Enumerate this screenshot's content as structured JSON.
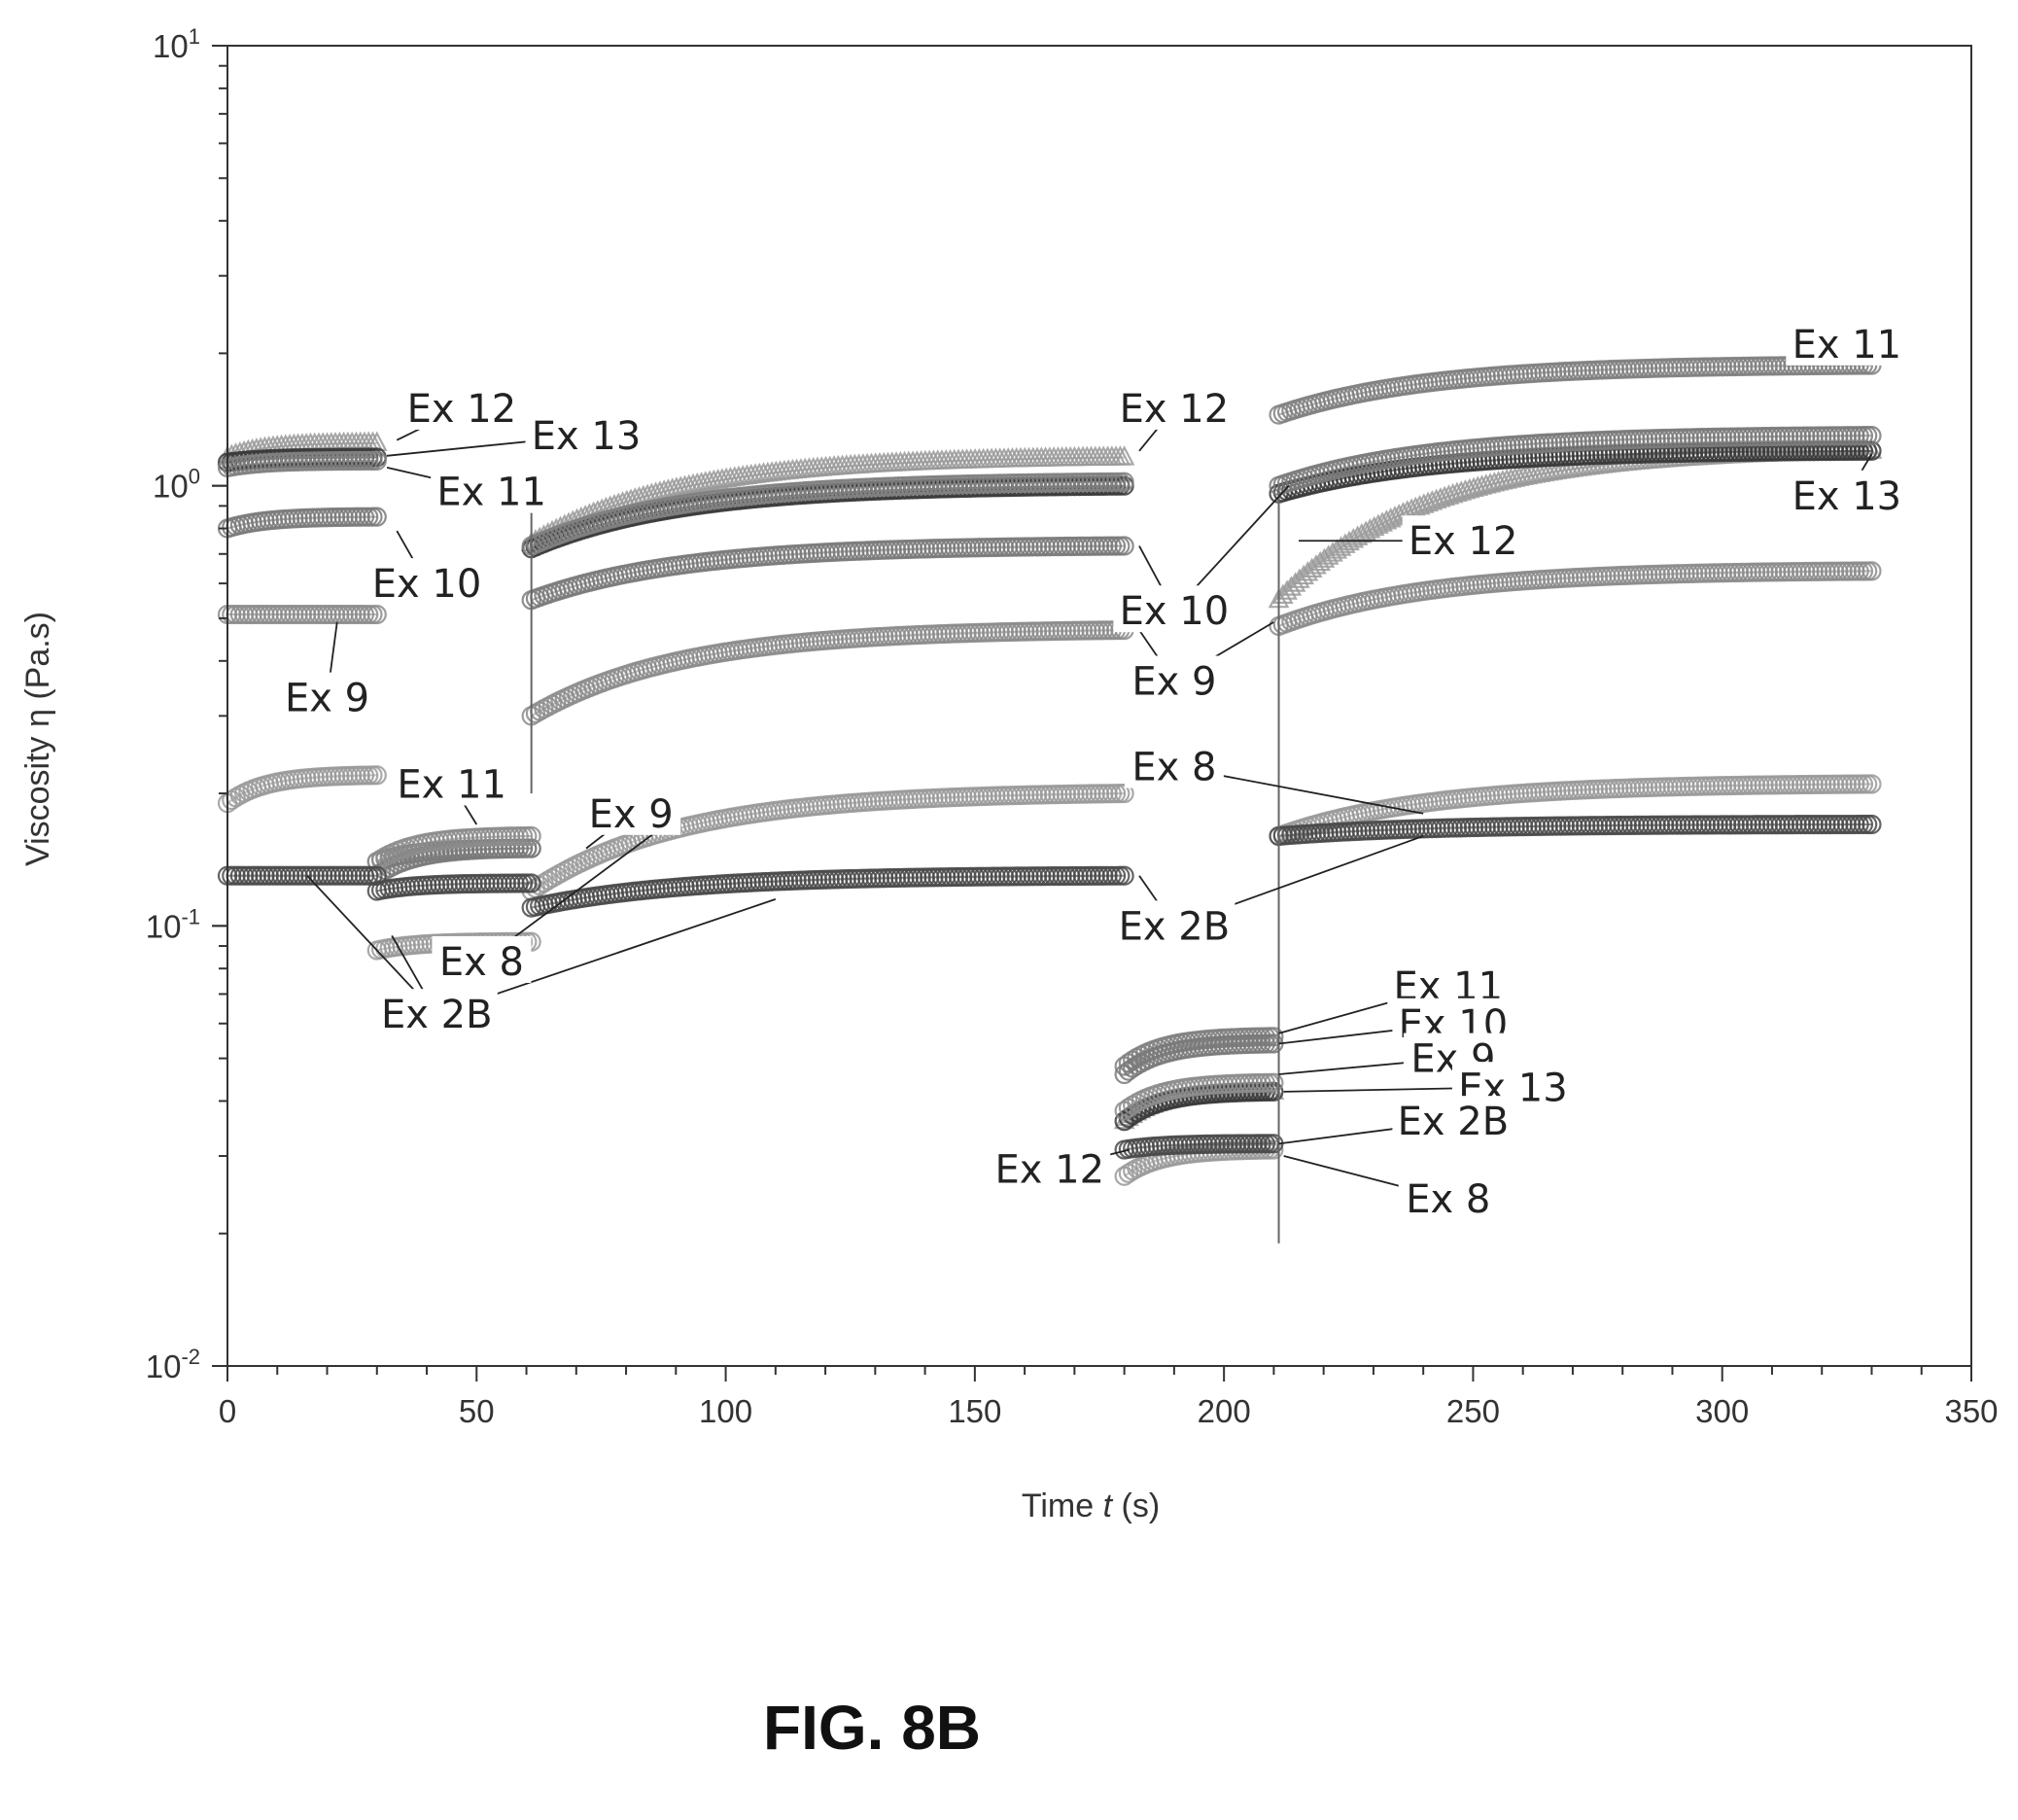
{
  "figure_caption": "FIG. 8B",
  "chart_data": {
    "type": "scatter",
    "title": "",
    "xlabel_prefix": "Time ",
    "xlabel_var": "t",
    "xlabel_unit": " (s)",
    "ylabel": "Viscosity η (Pa.s)",
    "xlim": [
      0,
      350
    ],
    "ylim": [
      0.01,
      10
    ],
    "yscale": "log",
    "grid": false,
    "x_ticks": [
      "0",
      "50",
      "100",
      "150",
      "200",
      "250",
      "300",
      "350"
    ],
    "y_ticks": [
      {
        "base": "10",
        "exp": "1"
      },
      {
        "base": "10",
        "exp": "0"
      },
      {
        "base": "10",
        "exp": "-1"
      },
      {
        "base": "10",
        "exp": "-2"
      }
    ],
    "series": [
      {
        "name": "Ex 12",
        "color": "#9a9a9a",
        "marker": "triangle",
        "segments": [
          {
            "x": [
              0,
              30
            ],
            "y": [
              1.16,
              1.25
            ]
          },
          {
            "x": [
              61,
              180
            ],
            "y": [
              0.74,
              1.16
            ]
          },
          {
            "x": [
              180,
              210
            ],
            "y": [
              0.036,
              0.042
            ]
          },
          {
            "x": [
              211,
              330
            ],
            "y": [
              0.55,
              1.2
            ]
          }
        ]
      },
      {
        "name": "Ex 13",
        "color": "#3a3a3a",
        "marker": "circle",
        "segments": [
          {
            "x": [
              0,
              30
            ],
            "y": [
              1.13,
              1.16
            ]
          },
          {
            "x": [
              61,
              180
            ],
            "y": [
              0.72,
              1.0
            ]
          },
          {
            "x": [
              180,
              210
            ],
            "y": [
              0.036,
              0.042
            ]
          },
          {
            "x": [
              211,
              330
            ],
            "y": [
              0.96,
              1.2
            ]
          }
        ]
      },
      {
        "name": "Ex 11",
        "color": "#808080",
        "marker": "circle",
        "segments": [
          {
            "x": [
              0,
              30
            ],
            "y": [
              1.1,
              1.14
            ]
          },
          {
            "x": [
              30,
              61
            ],
            "y": [
              0.14,
              0.15
            ]
          },
          {
            "x": [
              61,
              180
            ],
            "y": [
              0.73,
              1.02
            ]
          },
          {
            "x": [
              180,
              210
            ],
            "y": [
              0.048,
              0.056
            ]
          },
          {
            "x": [
              211,
              330
            ],
            "y": [
              1.45,
              1.88
            ]
          }
        ]
      },
      {
        "name": "Ex 10",
        "color": "#7a7a7a",
        "marker": "circle",
        "segments": [
          {
            "x": [
              0,
              30
            ],
            "y": [
              0.8,
              0.85
            ]
          },
          {
            "x": [
              30,
              61
            ],
            "y": [
              0.13,
              0.15
            ]
          },
          {
            "x": [
              61,
              180
            ],
            "y": [
              0.55,
              0.73
            ]
          },
          {
            "x": [
              180,
              210
            ],
            "y": [
              0.046,
              0.054
            ]
          },
          {
            "x": [
              211,
              330
            ],
            "y": [
              1.0,
              1.3
            ]
          }
        ]
      },
      {
        "name": "Ex 9",
        "color": "#8c8c8c",
        "marker": "circle",
        "segments": [
          {
            "x": [
              0,
              30
            ],
            "y": [
              0.51,
              0.51
            ]
          },
          {
            "x": [
              30,
              61
            ],
            "y": [
              0.14,
              0.16
            ]
          },
          {
            "x": [
              61,
              180
            ],
            "y": [
              0.3,
              0.47
            ]
          },
          {
            "x": [
              180,
              210
            ],
            "y": [
              0.038,
              0.044
            ]
          },
          {
            "x": [
              211,
              330
            ],
            "y": [
              0.48,
              0.64
            ]
          }
        ]
      },
      {
        "name": "Ex 8",
        "color": "#9a9a9a",
        "marker": "circle",
        "segments": [
          {
            "x": [
              0,
              30
            ],
            "y": [
              0.19,
              0.22
            ]
          },
          {
            "x": [
              30,
              61
            ],
            "y": [
              0.088,
              0.092
            ]
          },
          {
            "x": [
              61,
              180
            ],
            "y": [
              0.12,
              0.2
            ]
          },
          {
            "x": [
              180,
              210
            ],
            "y": [
              0.027,
              0.031
            ]
          },
          {
            "x": [
              211,
              330
            ],
            "y": [
              0.16,
              0.21
            ]
          }
        ]
      },
      {
        "name": "Ex 2B",
        "color": "#4a4a4a",
        "marker": "circle",
        "segments": [
          {
            "x": [
              0,
              30
            ],
            "y": [
              0.13,
              0.13
            ]
          },
          {
            "x": [
              30,
              61
            ],
            "y": [
              0.12,
              0.125
            ]
          },
          {
            "x": [
              61,
              180
            ],
            "y": [
              0.11,
              0.13
            ]
          },
          {
            "x": [
              180,
              210
            ],
            "y": [
              0.031,
              0.032
            ]
          },
          {
            "x": [
              211,
              330
            ],
            "y": [
              0.16,
              0.17
            ]
          }
        ]
      }
    ],
    "annotations": [
      {
        "text": "Ex 12",
        "at": [
          47,
          1.5
        ],
        "to": [
          34,
          1.27
        ]
      },
      {
        "text": "Ex 13",
        "at": [
          72,
          1.3
        ],
        "to": [
          32,
          1.17
        ]
      },
      {
        "text": "Ex 11",
        "at": [
          53,
          0.97
        ],
        "to": [
          32,
          1.1
        ]
      },
      {
        "text": "Ex 10",
        "at": [
          40,
          0.6
        ],
        "to": [
          34,
          0.79
        ]
      },
      {
        "text": "Ex 9",
        "at": [
          20,
          0.33
        ],
        "to": [
          22,
          0.49
        ]
      },
      {
        "text": "Ex 11",
        "at": [
          45,
          0.21
        ],
        "to": [
          50,
          0.17
        ]
      },
      {
        "text": "Ex 9",
        "at": [
          81,
          0.18
        ],
        "to": [
          72,
          0.15
        ]
      },
      {
        "text": "Ex 8",
        "at": [
          51,
          0.083
        ],
        "to": [
          88,
          0.17
        ]
      },
      {
        "text": "Ex 2B",
        "at": [
          42,
          0.063
        ],
        "to": [
          16,
          0.13
        ]
      },
      {
        "text": "Ex 2B",
        "at": [
          42,
          0.063
        ],
        "to": [
          33,
          0.095
        ]
      },
      {
        "text": "Ex 2B",
        "at": [
          42,
          0.063
        ],
        "to": [
          110,
          0.115
        ]
      },
      {
        "text": "Ex 12",
        "at": [
          190,
          1.5
        ],
        "to": [
          183,
          1.2
        ]
      },
      {
        "text": "Ex 10",
        "at": [
          190,
          0.52
        ],
        "to": [
          183,
          0.73
        ]
      },
      {
        "text": "Ex 9",
        "at": [
          190,
          0.36
        ],
        "to": [
          183,
          0.47
        ]
      },
      {
        "text": "Ex 8",
        "at": [
          190,
          0.23
        ],
        "to": [
          183,
          0.21
        ]
      },
      {
        "text": "Ex 8",
        "at": [
          190,
          0.23
        ],
        "to": [
          240,
          0.18
        ]
      },
      {
        "text": "Ex 2B",
        "at": [
          190,
          0.1
        ],
        "to": [
          183,
          0.13
        ]
      },
      {
        "text": "Ex 2B",
        "at": [
          190,
          0.1
        ],
        "to": [
          240,
          0.16
        ]
      },
      {
        "text": "Ex 11",
        "at": [
          325,
          2.1
        ],
        "to": [
          330,
          1.88
        ]
      },
      {
        "text": "Ex 13",
        "at": [
          325,
          0.95
        ],
        "to": [
          330,
          1.18
        ]
      },
      {
        "text": "Ex 10",
        "at": [
          190,
          0.52
        ],
        "to": [
          213,
          1.0
        ]
      },
      {
        "text": "Ex 12",
        "at": [
          248,
          0.75
        ],
        "to": [
          215,
          0.75
        ]
      },
      {
        "text": "Ex 9",
        "at": [
          190,
          0.36
        ],
        "to": [
          210,
          0.49
        ]
      },
      {
        "text": "Ex 11",
        "at": [
          245,
          0.073
        ],
        "to": [
          211,
          0.057
        ]
      },
      {
        "text": "Ex 10",
        "at": [
          246,
          0.06
        ],
        "to": [
          211,
          0.054
        ]
      },
      {
        "text": "Ex 9",
        "at": [
          246,
          0.05
        ],
        "to": [
          211,
          0.046
        ]
      },
      {
        "text": "Ex 13",
        "at": [
          258,
          0.043
        ],
        "to": [
          212,
          0.042
        ]
      },
      {
        "text": "Ex 2B",
        "at": [
          246,
          0.036
        ],
        "to": [
          211,
          0.032
        ]
      },
      {
        "text": "Ex 12",
        "at": [
          165,
          0.028
        ],
        "to": [
          181,
          0.031
        ]
      },
      {
        "text": "Ex 8",
        "at": [
          245,
          0.024
        ],
        "to": [
          212,
          0.03
        ]
      }
    ]
  }
}
